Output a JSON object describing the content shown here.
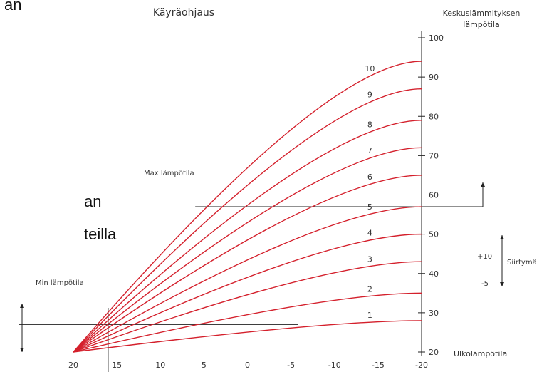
{
  "page_fragments": [
    "an",
    "an",
    "teilla"
  ],
  "chart_data": {
    "type": "line",
    "title": "Käyräohjaus",
    "ylabel": "Keskuslämmityksen lämpötila",
    "xlabel": "Ulkolämpötila",
    "x_ticks": [
      "20",
      "15",
      "10",
      "5",
      "0",
      "-5",
      "-10",
      "-15",
      "-20"
    ],
    "y_ticks": [
      "20",
      "30",
      "40",
      "50",
      "60",
      "70",
      "80",
      "90",
      "100"
    ],
    "xlim": [
      20,
      -20
    ],
    "ylim": [
      20,
      100
    ],
    "origin": [
      20,
      20
    ],
    "curves": [
      {
        "name": "1",
        "end": 28
      },
      {
        "name": "2",
        "end": 35
      },
      {
        "name": "3",
        "end": 43
      },
      {
        "name": "4",
        "end": 50
      },
      {
        "name": "5",
        "end": 57
      },
      {
        "name": "6",
        "end": 65
      },
      {
        "name": "7",
        "end": 72
      },
      {
        "name": "8",
        "end": 79
      },
      {
        "name": "9",
        "end": 87
      },
      {
        "name": "10",
        "end": 94
      }
    ],
    "max_label": "Max lämpötila",
    "max_value": 57,
    "max_from_x": 6,
    "min_label": "Min lämpötila",
    "min_value": 27,
    "min_x": 16,
    "shift_label": "Siirtymä",
    "shift_plus": "+10",
    "shift_minus": "-5",
    "line_color": "#d4202c",
    "axis_color": "#222222"
  }
}
